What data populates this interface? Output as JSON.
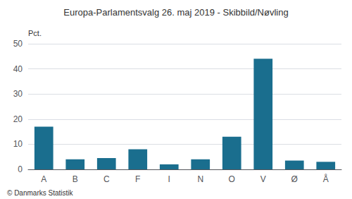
{
  "chart_data": {
    "type": "bar",
    "title": "Europa-Parlamentsvalg 26. maj 2019 - Skibbild/Nøvling",
    "ylabel": "Pct.",
    "annotations": [
      "© Danmarks Statistik"
    ],
    "categories": [
      "A",
      "B",
      "C",
      "F",
      "I",
      "N",
      "O",
      "V",
      "Ø",
      "Å"
    ],
    "values": [
      17.0,
      4.0,
      4.5,
      8.0,
      2.0,
      4.0,
      13.0,
      44.0,
      3.5,
      3.0
    ],
    "color": "#1a6e8e",
    "ylim": [
      0,
      50
    ],
    "yticks": [
      0,
      10,
      20,
      30,
      40,
      50
    ],
    "grid": true
  }
}
